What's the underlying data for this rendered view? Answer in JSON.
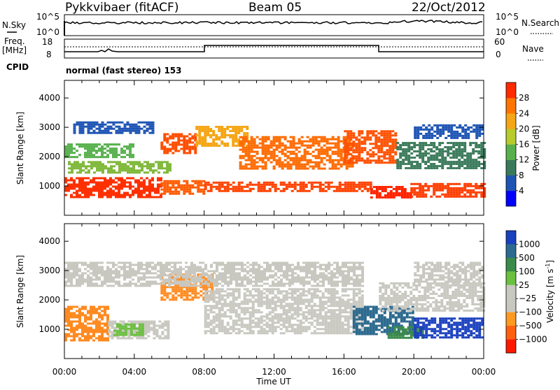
{
  "header": {
    "title": "Pykkvibaer (fitACF)",
    "beam": "Beam 05",
    "date": "22/Oct/2012"
  },
  "nsky_panel": {
    "left_label": "N.Sky",
    "left_ticks": [
      "10^5",
      "10^0"
    ],
    "right_ticks": [
      "10^5",
      "10^0"
    ],
    "right_label": "N.Search"
  },
  "freq_panel": {
    "left_label_line1": "Freq.",
    "left_label_line2": "[MHz]",
    "left_ticks": [
      "18",
      "8"
    ],
    "right_ticks": [
      "60",
      "0"
    ],
    "right_label": "Nave"
  },
  "cpid": {
    "label": "CPID",
    "text": "normal (fast stereo) 153"
  },
  "chart_data": [
    {
      "type": "heatmap",
      "quantity": "Power",
      "ylabel": "Slant Range [km]",
      "ylim": [
        0,
        4600
      ],
      "yticks": [
        1000,
        2000,
        3000,
        4000
      ],
      "x_ticks": [
        "00:00",
        "04:00",
        "08:00",
        "12:00",
        "16:00",
        "20:00",
        "00:00"
      ],
      "xlim_hours": [
        0,
        24
      ],
      "colorbar": {
        "label": "Power [dB]",
        "tick_labels": [
          "4",
          "8",
          "12",
          "16",
          "20",
          "24",
          "28"
        ],
        "colors": [
          "#0000ff",
          "#1e54b4",
          "#3a7a5a",
          "#57b04c",
          "#b7cc2a",
          "#f5a616",
          "#ff7400",
          "#ff2a00"
        ]
      },
      "bands": [
        {
          "start_h": 0.0,
          "end_h": 5.5,
          "r0": 600,
          "r1": 1300,
          "color": "#ff3000"
        },
        {
          "start_h": 5.5,
          "end_h": 8.0,
          "r0": 700,
          "r1": 1200,
          "color": "#ff5a00"
        },
        {
          "start_h": 8.0,
          "end_h": 17.5,
          "r0": 850,
          "r1": 1150,
          "color": "#ff4200"
        },
        {
          "start_h": 17.5,
          "end_h": 19.8,
          "r0": 600,
          "r1": 1000,
          "color": "#ff2400"
        },
        {
          "start_h": 19.8,
          "end_h": 24.0,
          "r0": 650,
          "r1": 1100,
          "color": "#ff3c00"
        },
        {
          "start_h": 0.2,
          "end_h": 6.0,
          "r0": 1450,
          "r1": 1850,
          "color": "#7fb83a"
        },
        {
          "start_h": 0.0,
          "end_h": 4.0,
          "r0": 2000,
          "r1": 2450,
          "color": "#57b04c"
        },
        {
          "start_h": 0.5,
          "end_h": 5.0,
          "r0": 2800,
          "r1": 3200,
          "color": "#1e54b4"
        },
        {
          "start_h": 5.5,
          "end_h": 7.5,
          "r0": 2100,
          "r1": 2800,
          "color": "#ff4e00"
        },
        {
          "start_h": 7.5,
          "end_h": 10.5,
          "r0": 2350,
          "r1": 3050,
          "color": "#f5a616"
        },
        {
          "start_h": 10.0,
          "end_h": 16.5,
          "r0": 1600,
          "r1": 2700,
          "color": "#ff6a00"
        },
        {
          "start_h": 16.0,
          "end_h": 19.0,
          "r0": 1800,
          "r1": 2900,
          "color": "#ff5000"
        },
        {
          "start_h": 19.0,
          "end_h": 24.0,
          "r0": 1600,
          "r1": 2500,
          "color": "#3a7a5a"
        },
        {
          "start_h": 20.0,
          "end_h": 24.0,
          "r0": 2600,
          "r1": 3100,
          "color": "#1e54b4"
        }
      ]
    },
    {
      "type": "heatmap",
      "quantity": "Velocity",
      "ylabel": "Slant Range [km]",
      "ylim": [
        0,
        4600
      ],
      "yticks": [
        1000,
        2000,
        3000,
        4000
      ],
      "x_ticks": [
        "00:00",
        "04:00",
        "08:00",
        "12:00",
        "16:00",
        "20:00",
        "00:00"
      ],
      "xlim_hours": [
        0,
        24
      ],
      "xlabel": "Time UT",
      "colorbar": {
        "label_main": "Velocity",
        "label_unit": "[m s",
        "label_exp": "-1",
        "label_close": "]",
        "tick_labels": [
          "1000",
          "500",
          "100",
          "25",
          "−25",
          "−100",
          "−500",
          "−1000"
        ],
        "colors": [
          "#1a3fbf",
          "#2d6a8f",
          "#3a8a4a",
          "#6cc040",
          "#c8c8c0",
          "#c8c8c0",
          "#ff9a20",
          "#ff6010",
          "#ff1800"
        ]
      },
      "bands": [
        {
          "start_h": 0.0,
          "end_h": 2.5,
          "r0": 600,
          "r1": 1800,
          "color": "#ff8a20"
        },
        {
          "start_h": 2.5,
          "end_h": 6.0,
          "r0": 700,
          "r1": 1300,
          "color": "#c8c8c0"
        },
        {
          "start_h": 2.8,
          "end_h": 4.5,
          "r0": 800,
          "r1": 1200,
          "color": "#6cc040"
        },
        {
          "start_h": 5.5,
          "end_h": 8.5,
          "r0": 2000,
          "r1": 2900,
          "color": "#ff8a20"
        },
        {
          "start_h": 0.0,
          "end_h": 17.0,
          "r0": 2500,
          "r1": 3300,
          "color": "#c8c8c0"
        },
        {
          "start_h": 8.0,
          "end_h": 17.0,
          "r0": 850,
          "r1": 2400,
          "color": "#c8c8c0"
        },
        {
          "start_h": 16.5,
          "end_h": 20.0,
          "r0": 800,
          "r1": 1800,
          "color": "#2d6a8f"
        },
        {
          "start_h": 18.5,
          "end_h": 20.5,
          "r0": 700,
          "r1": 1100,
          "color": "#3a8a4a"
        },
        {
          "start_h": 20.0,
          "end_h": 24.0,
          "r0": 700,
          "r1": 1400,
          "color": "#1a3fbf"
        },
        {
          "start_h": 18.0,
          "end_h": 24.0,
          "r0": 1600,
          "r1": 2600,
          "color": "#c8c8c0"
        },
        {
          "start_h": 20.0,
          "end_h": 24.0,
          "r0": 2600,
          "r1": 3300,
          "color": "#c8c8c0"
        }
      ]
    }
  ]
}
